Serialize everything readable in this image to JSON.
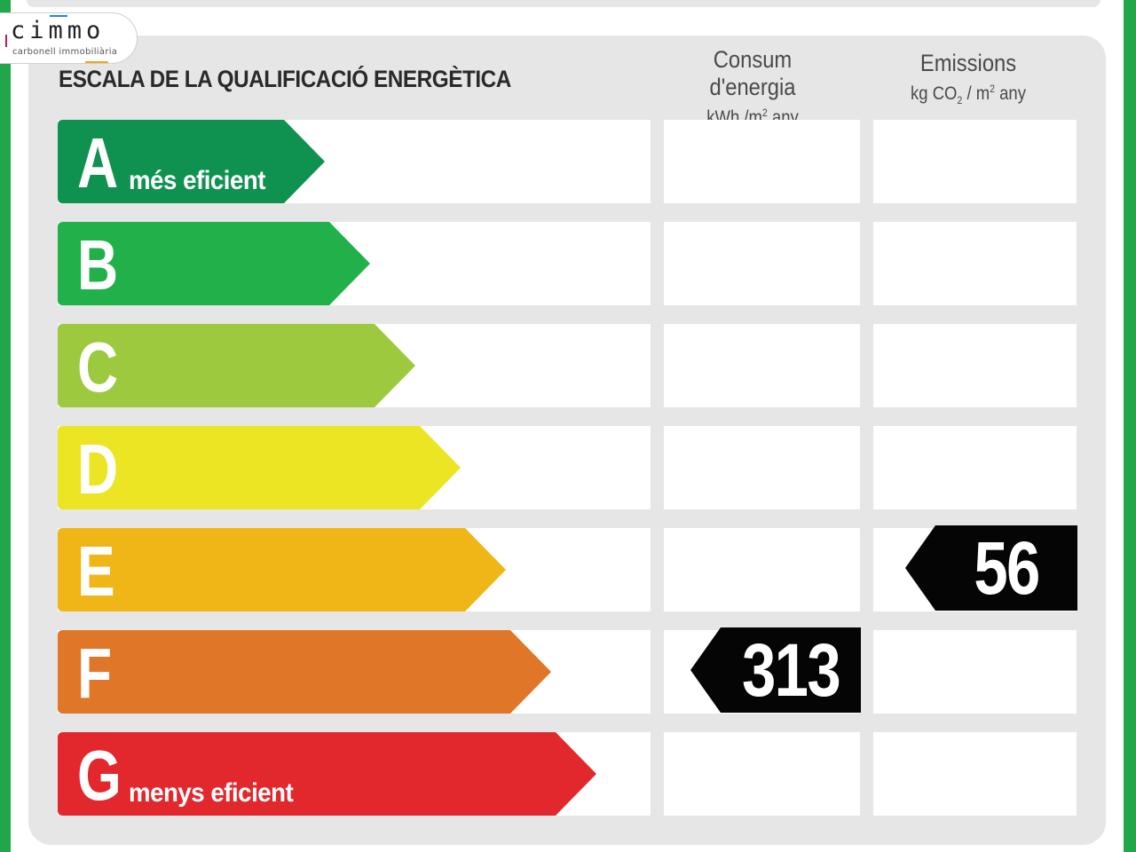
{
  "logo": {
    "word": "cimmo",
    "sub": "carbonell immobiliària"
  },
  "heading": "ESCALA DE LA QUALIFICACIÓ ENERGÈTICA",
  "columns": {
    "energy": {
      "title": "Consum d'energia",
      "unit_a": "kWh /m",
      "unit_sup": "2",
      "unit_b": " any"
    },
    "emissions": {
      "title": "Emissions",
      "unit_a": "kg CO",
      "unit_sub": "2",
      "unit_b": " / m",
      "unit_sup": "2",
      "unit_c": " any"
    }
  },
  "classes": [
    {
      "letter": "A",
      "label": "més eficient",
      "color": "#0f9150"
    },
    {
      "letter": "B",
      "label": "",
      "color": "#22b04b"
    },
    {
      "letter": "C",
      "label": "",
      "color": "#9cc93e"
    },
    {
      "letter": "D",
      "label": "",
      "color": "#ebe523"
    },
    {
      "letter": "E",
      "label": "",
      "color": "#f0b618"
    },
    {
      "letter": "F",
      "label": "",
      "color": "#e07628"
    },
    {
      "letter": "G",
      "label": "menys eficient",
      "color": "#e2282d"
    }
  ],
  "ratings": {
    "energy": {
      "class": "F",
      "value": "313"
    },
    "emissions": {
      "class": "E",
      "value": "56"
    }
  }
}
